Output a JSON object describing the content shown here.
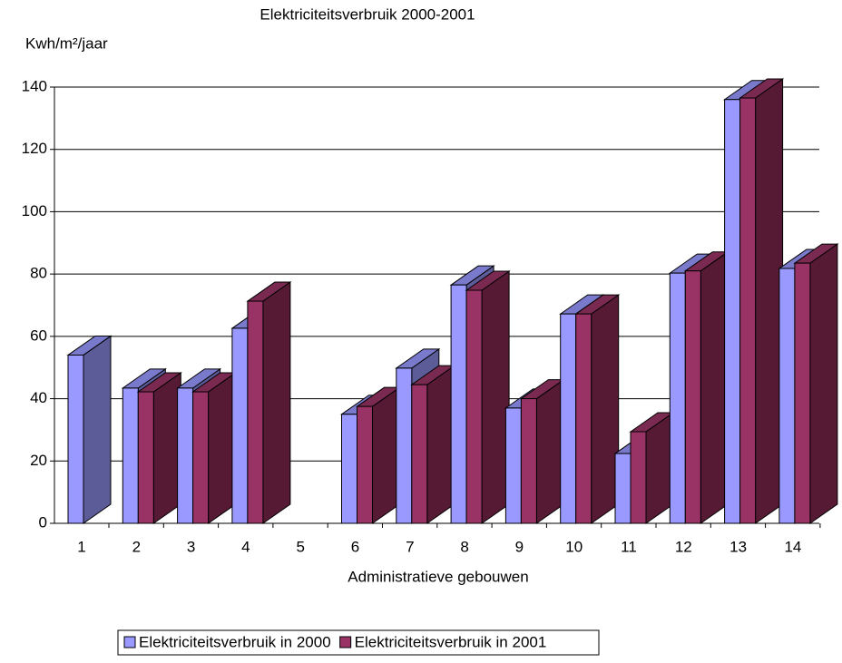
{
  "chart_data": {
    "type": "bar3d",
    "title": "Elektriciteitsverbruik 2000-2001",
    "y_label": "Kwh/m²/jaar",
    "x_label": "Administratieve gebouwen",
    "categories": [
      "1",
      "2",
      "3",
      "4",
      "5",
      "6",
      "7",
      "8",
      "9",
      "10",
      "11",
      "12",
      "13",
      "14"
    ],
    "series": [
      {
        "name": "Elektriciteitsverbruik in 2000",
        "color": "#9999ff",
        "side_color": "#5c5c99",
        "top_color": "#7a7acc",
        "values": [
          54,
          43.4,
          43.4,
          62.6,
          null,
          35,
          49.8,
          76.5,
          37,
          67.2,
          22.4,
          80.3,
          136,
          81.8
        ]
      },
      {
        "name": "Elektriciteitsverbruik in 2001",
        "color": "#993366",
        "side_color": "#561a35",
        "top_color": "#7a2950",
        "values": [
          null,
          42.2,
          42.2,
          71.3,
          null,
          37.5,
          44.5,
          74.8,
          40,
          67.2,
          29.4,
          81,
          136.5,
          83.5
        ]
      }
    ],
    "ylim": [
      0,
      140
    ],
    "yticks": [
      0,
      20,
      40,
      60,
      80,
      100,
      120,
      140
    ],
    "grid": true,
    "legend": "bottom"
  }
}
